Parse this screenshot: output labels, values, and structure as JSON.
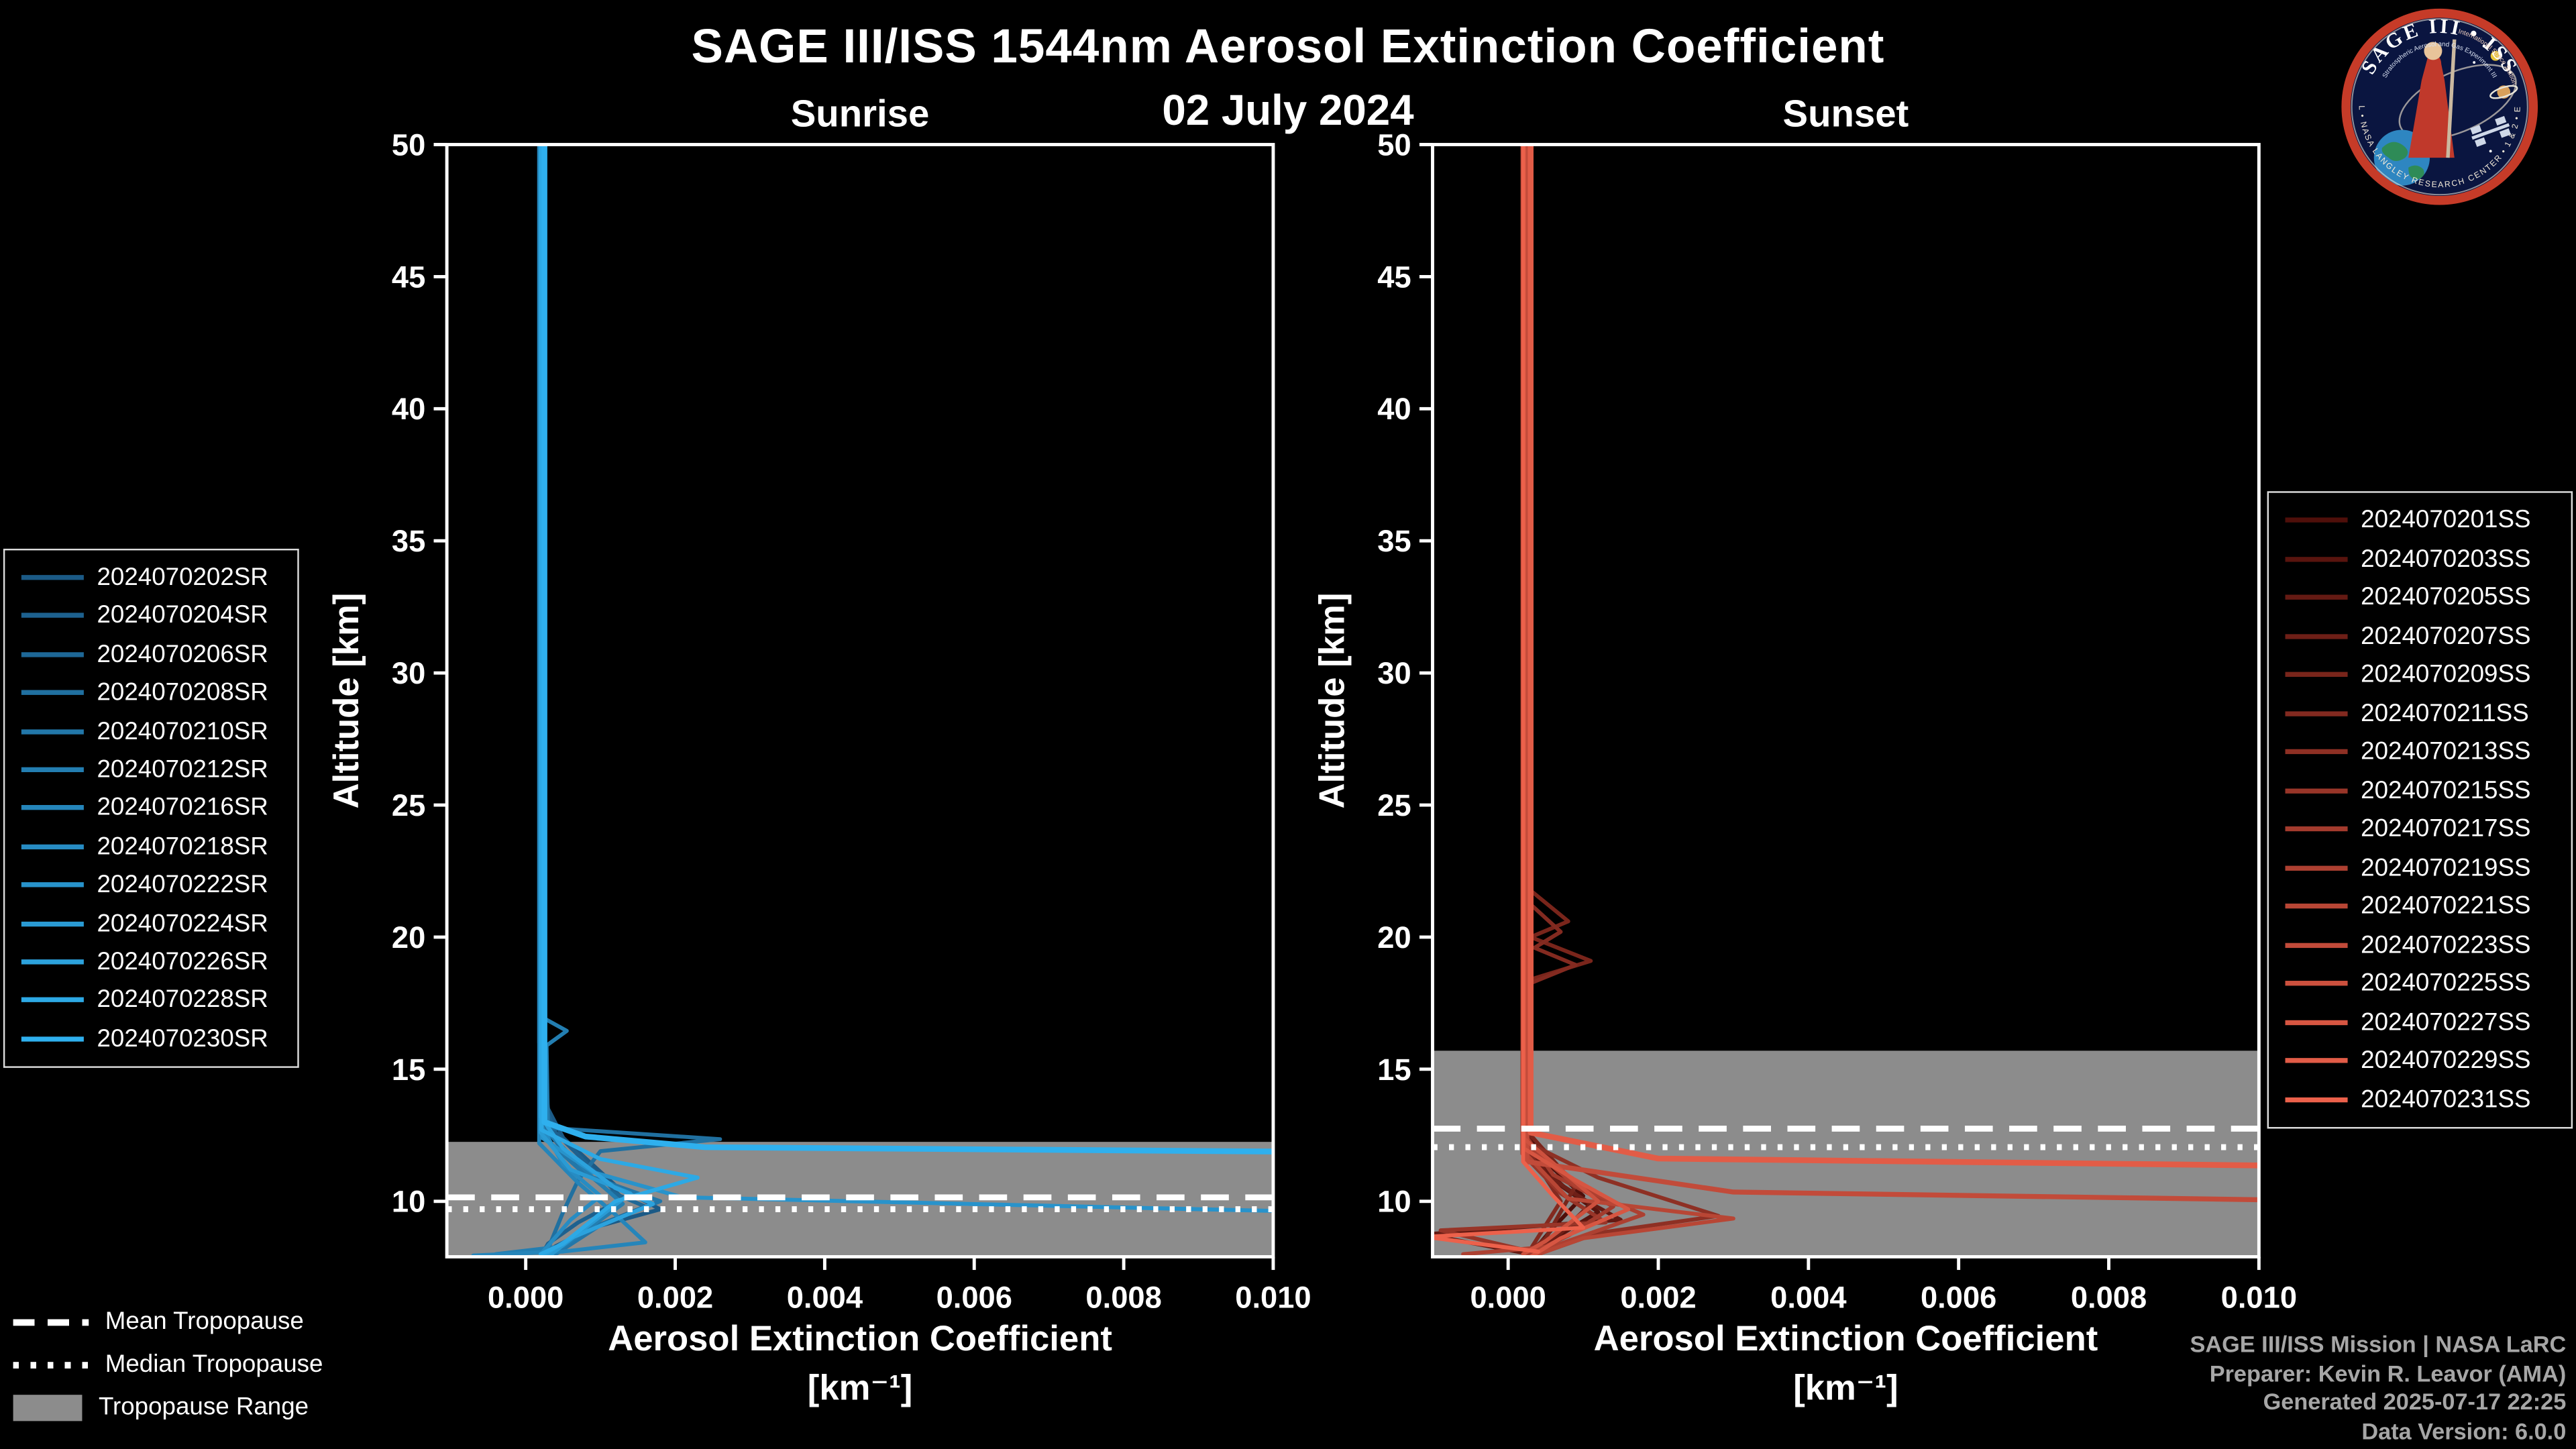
{
  "header": {
    "title": "SAGE III/ISS 1544nm Aerosol Extinction Coefficient",
    "date": "02 July 2024"
  },
  "tropopause_legend": {
    "mean": "Mean Tropopause",
    "median": "Median Tropopause",
    "range": "Tropopause Range"
  },
  "footer": {
    "lines": [
      "SAGE III/ISS Mission | NASA LaRC",
      "Preparer: Kevin R. Leavor (AMA)",
      "Generated 2025-07-17 22:25",
      "Data Version: 6.0.0"
    ]
  },
  "logo": {
    "title": "SAGE III • ISS",
    "subtitle": "Stratospheric Aerosol and Gas Experiment III",
    "side_text": "International Space Station",
    "bottom_text": "BAL • NASA LANGLEY RESEARCH CENTER • 1 & 2 • ESA",
    "ring_color": "#c63b28",
    "bg_color": "#0a1540"
  },
  "chart_data": [
    {
      "type": "line",
      "title": "Sunrise",
      "xlabel": "Aerosol Extinction Coefficient",
      "xlabel_units": "[km⁻¹]",
      "ylabel": "Altitude [km]",
      "xlim": [
        -0.00105,
        0.01
      ],
      "ylim": [
        7.9,
        50
      ],
      "xticks": [
        0,
        0.002,
        0.004,
        0.006,
        0.008,
        0.01
      ],
      "xtick_labels": [
        "0.000",
        "0.002",
        "0.004",
        "0.006",
        "0.008",
        "0.010"
      ],
      "yticks": [
        10,
        15,
        20,
        25,
        30,
        35,
        40,
        45,
        50
      ],
      "ytick_labels": [
        "10",
        "15",
        "20",
        "25",
        "30",
        "35",
        "40",
        "45",
        "50"
      ],
      "grid": false,
      "legend_position": "outside-left",
      "line_color_start": "#1b5a86",
      "line_color_end": "#2fb0ee",
      "tropopause": {
        "mean": 10.15,
        "median": 9.7,
        "range_min": 7.9,
        "range_max": 12.25,
        "band_color": "#8c8c8c"
      },
      "series": [
        {
          "name": "2024070202SR",
          "points": [
            [
              0.00018,
              50
            ],
            [
              0.00018,
              16
            ],
            [
              0.0003,
              13.5
            ],
            [
              0.0005,
              12.4
            ],
            [
              0.0012,
              10.6
            ],
            [
              0.0018,
              9.7
            ],
            [
              0.0009,
              9.0
            ],
            [
              0.0004,
              8.3
            ],
            [
              0.0002,
              7.9
            ]
          ]
        },
        {
          "name": "2024070204SR",
          "points": [
            [
              0.0002,
              50
            ],
            [
              0.0002,
              14
            ],
            [
              0.0004,
              12.6
            ],
            [
              0.0009,
              11.2
            ],
            [
              0.0013,
              10.1
            ],
            [
              0.0007,
              9.2
            ],
            [
              0.0003,
              8.4
            ],
            [
              0.0002,
              7.9
            ]
          ]
        },
        {
          "name": "2024070206SR",
          "points": [
            [
              0.00019,
              50
            ],
            [
              0.00019,
              13
            ],
            [
              0.0006,
              11.6
            ],
            [
              0.0011,
              10.4
            ],
            [
              0.0016,
              9.8
            ],
            [
              0.0008,
              8.9
            ],
            [
              0.0003,
              8.0
            ]
          ]
        },
        {
          "name": "2024070208SR",
          "points": [
            [
              0.0002,
              50
            ],
            [
              0.0002,
              12.8
            ],
            [
              0.0026,
              12.35
            ],
            [
              0.001,
              11.9
            ],
            [
              0.0007,
              10.8
            ],
            [
              0.0005,
              9.6
            ],
            [
              0.0003,
              8.2
            ]
          ]
        },
        {
          "name": "2024070210SR",
          "points": [
            [
              0.00021,
              50
            ],
            [
              0.00021,
              12.5
            ],
            [
              0.0008,
              11.0
            ],
            [
              0.0018,
              10.0
            ],
            [
              0.001,
              9.1
            ],
            [
              0.0004,
              8.0
            ]
          ]
        },
        {
          "name": "2024070212SR",
          "points": [
            [
              0.0002,
              50
            ],
            [
              0.0002,
              17
            ],
            [
              0.00055,
              16.45
            ],
            [
              0.00028,
              15.9
            ],
            [
              0.0003,
              12.6
            ],
            [
              0.0009,
              10.9
            ],
            [
              0.0013,
              9.9
            ],
            [
              0.0005,
              8.3
            ],
            [
              -0.0004,
              8.0
            ]
          ]
        },
        {
          "name": "2024070216SR",
          "points": [
            [
              0.00018,
              50
            ],
            [
              0.00018,
              12.2
            ],
            [
              0.0007,
              10.7
            ],
            [
              0.0012,
              9.5
            ],
            [
              0.0016,
              8.45
            ],
            [
              0.0005,
              8.1
            ],
            [
              -0.0007,
              7.95
            ]
          ]
        },
        {
          "name": "2024070218SR",
          "points": [
            [
              0.0002,
              50
            ],
            [
              0.0002,
              12.9
            ],
            [
              0.0005,
              11.4
            ],
            [
              0.001,
              10.2
            ],
            [
              0.0006,
              9.3
            ],
            [
              0.0002,
              8.0
            ]
          ]
        },
        {
          "name": "2024070222SR",
          "points": [
            [
              0.00022,
              50
            ],
            [
              0.00022,
              12.4
            ],
            [
              0.0009,
              11.1
            ],
            [
              0.0021,
              10.15
            ],
            [
              0.0102,
              9.62
            ]
          ]
        },
        {
          "name": "2024070224SR",
          "points": [
            [
              0.0002,
              50
            ],
            [
              0.0002,
              12.6
            ],
            [
              0.0006,
              11.2
            ],
            [
              0.0014,
              10.3
            ],
            [
              0.0008,
              9.0
            ],
            [
              0.0003,
              7.9
            ]
          ]
        },
        {
          "name": "2024070226SR",
          "points": [
            [
              0.0002,
              50
            ],
            [
              0.0002,
              13.2
            ],
            [
              0.0005,
              12.0
            ],
            [
              0.0012,
              10.5
            ],
            [
              0.0017,
              9.9
            ],
            [
              0.0006,
              8.6
            ],
            [
              0.0002,
              7.9
            ]
          ]
        },
        {
          "name": "2024070228SR",
          "points": [
            [
              0.00021,
              50
            ],
            [
              0.00021,
              12.7
            ],
            [
              0.001,
              11.6
            ],
            [
              0.0023,
              10.9
            ],
            [
              0.0012,
              10.0
            ],
            [
              0.0005,
              8.4
            ],
            [
              0.0002,
              8.0
            ]
          ]
        },
        {
          "name": "2024070230SR",
          "lw": 3.5,
          "points": [
            [
              0.00025,
              50
            ],
            [
              0.00025,
              13.0
            ],
            [
              0.0008,
              12.45
            ],
            [
              0.0024,
              12.05
            ],
            [
              0.0102,
              11.88
            ]
          ]
        }
      ]
    },
    {
      "type": "line",
      "title": "Sunset",
      "xlabel": "Aerosol Extinction Coefficient",
      "xlabel_units": "[km⁻¹]",
      "ylabel": "Altitude [km]",
      "xlim": [
        -0.00105,
        0.01
      ],
      "ylim": [
        7.9,
        50
      ],
      "xticks": [
        0,
        0.002,
        0.004,
        0.006,
        0.008,
        0.01
      ],
      "xtick_labels": [
        "0.000",
        "0.002",
        "0.004",
        "0.006",
        "0.008",
        "0.010"
      ],
      "yticks": [
        10,
        15,
        20,
        25,
        30,
        35,
        40,
        45,
        50
      ],
      "ytick_labels": [
        "10",
        "15",
        "20",
        "25",
        "30",
        "35",
        "40",
        "45",
        "50"
      ],
      "grid": false,
      "legend_position": "outside-right",
      "line_color_start": "#4f0f0a",
      "line_color_end": "#ec614b",
      "tropopause": {
        "mean": 12.75,
        "median": 12.05,
        "range_min": 7.9,
        "range_max": 15.7,
        "band_color": "#8c8c8c"
      },
      "series": [
        {
          "name": "2024070201SS",
          "points": [
            [
              0.0002,
              50
            ],
            [
              0.0002,
              13
            ],
            [
              0.0005,
              11.5
            ],
            [
              0.001,
              10.2
            ],
            [
              0.0006,
              9.0
            ],
            [
              0.0003,
              8.0
            ]
          ]
        },
        {
          "name": "2024070203SS",
          "points": [
            [
              0.00019,
              50
            ],
            [
              0.00019,
              12.5
            ],
            [
              0.0006,
              10.8
            ],
            [
              0.0012,
              9.6
            ],
            [
              0.0005,
              8.4
            ],
            [
              0.0002,
              7.9
            ]
          ]
        },
        {
          "name": "2024070205SS",
          "points": [
            [
              0.0002,
              50
            ],
            [
              0.0002,
              12
            ],
            [
              0.0008,
              10.4
            ],
            [
              0.0015,
              9.3
            ],
            [
              -0.0011,
              8.75
            ],
            [
              0.0003,
              8.0
            ]
          ]
        },
        {
          "name": "2024070207SS",
          "points": [
            [
              0.00021,
              50
            ],
            [
              0.00021,
              12.8
            ],
            [
              0.0005,
              11.0
            ],
            [
              0.0011,
              9.9
            ],
            [
              0.0007,
              8.8
            ],
            [
              0.0002,
              7.9
            ]
          ]
        },
        {
          "name": "2024070209SS",
          "points": [
            [
              0.0002,
              50
            ],
            [
              0.0002,
              22
            ],
            [
              0.0008,
              20.6
            ],
            [
              0.0003,
              20.0
            ],
            [
              0.0011,
              19.1
            ],
            [
              0.0003,
              18.4
            ],
            [
              0.0003,
              12.5
            ],
            [
              0.0009,
              10.6
            ],
            [
              0.0005,
              8.6
            ],
            [
              0.0002,
              7.9
            ]
          ]
        },
        {
          "name": "2024070211SS",
          "points": [
            [
              0.0002,
              50
            ],
            [
              0.0002,
              21.5
            ],
            [
              0.0007,
              20.2
            ],
            [
              0.00035,
              19.6
            ],
            [
              0.0009,
              18.95
            ],
            [
              0.00025,
              18.2
            ],
            [
              0.00025,
              12
            ],
            [
              0.0007,
              10.0
            ],
            [
              0.0003,
              8.2
            ]
          ]
        },
        {
          "name": "2024070213SS",
          "points": [
            [
              0.0002,
              50
            ],
            [
              0.0002,
              12.3
            ],
            [
              0.0012,
              10.9
            ],
            [
              0.0028,
              9.45
            ],
            [
              0.0012,
              8.8
            ],
            [
              0.0004,
              8.0
            ]
          ]
        },
        {
          "name": "2024070215SS",
          "points": [
            [
              0.00019,
              50
            ],
            [
              0.00019,
              11.8
            ],
            [
              0.0007,
              10.3
            ],
            [
              0.0013,
              9.2
            ],
            [
              -0.0009,
              8.9
            ],
            [
              0.0003,
              8.1
            ]
          ]
        },
        {
          "name": "2024070217SS",
          "points": [
            [
              0.0002,
              50
            ],
            [
              0.0002,
              12.6
            ],
            [
              0.0006,
              11.0
            ],
            [
              0.0014,
              9.8
            ],
            [
              0.0008,
              8.7
            ],
            [
              0.0002,
              7.9
            ]
          ]
        },
        {
          "name": "2024070219SS",
          "points": [
            [
              0.00022,
              50
            ],
            [
              0.00022,
              12.2
            ],
            [
              0.0009,
              10.6
            ],
            [
              0.0018,
              9.5
            ],
            [
              0.0006,
              8.3
            ],
            [
              -0.0006,
              8.0
            ]
          ]
        },
        {
          "name": "2024070221SS",
          "points": [
            [
              0.0002,
              50
            ],
            [
              0.0002,
              11.9
            ],
            [
              0.0008,
              10.1
            ],
            [
              0.003,
              9.35
            ],
            [
              0.001,
              8.6
            ],
            [
              0.0003,
              7.9
            ]
          ]
        },
        {
          "name": "2024070223SS",
          "lw": 3,
          "points": [
            [
              0.00025,
              50
            ],
            [
              0.00025,
              11.5
            ],
            [
              0.003,
              10.35
            ],
            [
              0.0102,
              10.05
            ]
          ]
        },
        {
          "name": "2024070225SS",
          "points": [
            [
              0.0002,
              50
            ],
            [
              0.0002,
              12.4
            ],
            [
              0.0007,
              11.2
            ],
            [
              0.0012,
              10.0
            ],
            [
              0.0005,
              8.5
            ],
            [
              0.0002,
              8.0
            ]
          ]
        },
        {
          "name": "2024070227SS",
          "points": [
            [
              0.00021,
              50
            ],
            [
              0.00021,
              12.0
            ],
            [
              0.0009,
              10.8
            ],
            [
              0.0016,
              9.7
            ],
            [
              0.0007,
              8.6
            ],
            [
              0.0003,
              7.9
            ]
          ]
        },
        {
          "name": "2024070229SS",
          "lw": 3.5,
          "points": [
            [
              0.0003,
              50
            ],
            [
              0.0003,
              12.6
            ],
            [
              0.002,
              11.62
            ],
            [
              0.0102,
              11.35
            ]
          ]
        },
        {
          "name": "2024070231SS",
          "points": [
            [
              0.0002,
              50
            ],
            [
              0.0002,
              11.5
            ],
            [
              0.0006,
              10.2
            ],
            [
              0.001,
              9.0
            ],
            [
              -0.0011,
              8.65
            ],
            [
              0.0004,
              8.1
            ]
          ]
        }
      ]
    }
  ]
}
